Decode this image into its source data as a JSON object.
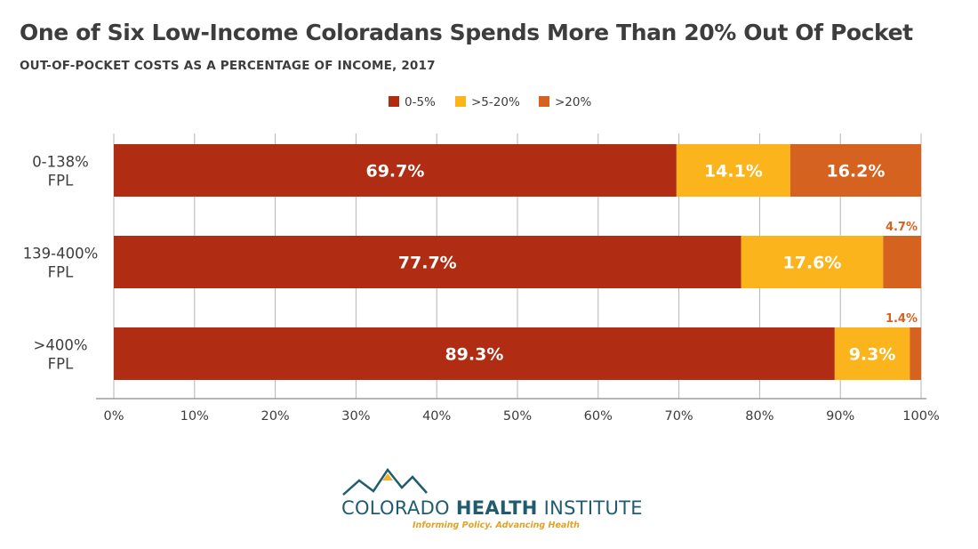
{
  "title": "One of Six Low-Income Coloradans Spends More Than 20% Out Of Pocket",
  "subtitle": "OUT-OF-POCKET COSTS AS A PERCENTAGE OF INCOME, 2017",
  "chart_data": {
    "type": "bar",
    "orientation": "horizontal",
    "stacked": true,
    "categories": [
      [
        "0-138%",
        "FPL"
      ],
      [
        "139-400%",
        "FPL"
      ],
      [
        ">400%",
        "FPL"
      ]
    ],
    "series": [
      {
        "name": "0-5%",
        "values": [
          69.7,
          77.7,
          89.3
        ],
        "labels": [
          "69.7%",
          "77.7%",
          "89.3%"
        ],
        "color": "#b02d14"
      },
      {
        "name": ">5-20%",
        "values": [
          14.1,
          17.6,
          9.3
        ],
        "labels": [
          "14.1%",
          "17.6%",
          "9.3%"
        ],
        "color": "#fbb41b"
      },
      {
        "name": ">20%",
        "values": [
          16.2,
          4.7,
          1.4
        ],
        "labels": [
          "16.2%",
          "4.7%",
          "1.4%"
        ],
        "color": "#d6621f"
      }
    ],
    "x_ticks": [
      "0%",
      "10%",
      "20%",
      "30%",
      "40%",
      "50%",
      "60%",
      "70%",
      "80%",
      "90%",
      "100%"
    ],
    "xlim": [
      0,
      100
    ],
    "grid": true,
    "legend_position": "top-center",
    "outside_label_color": "#d6621f"
  },
  "logo": {
    "wordmark_regular_1": "COLORADO ",
    "wordmark_bold": "HEALTH",
    "wordmark_regular_2": " INSTITUTE",
    "tagline": "Informing Policy. Advancing Health",
    "colors": {
      "mountains": "#1f5c6f",
      "peak": "#f2b134"
    }
  }
}
